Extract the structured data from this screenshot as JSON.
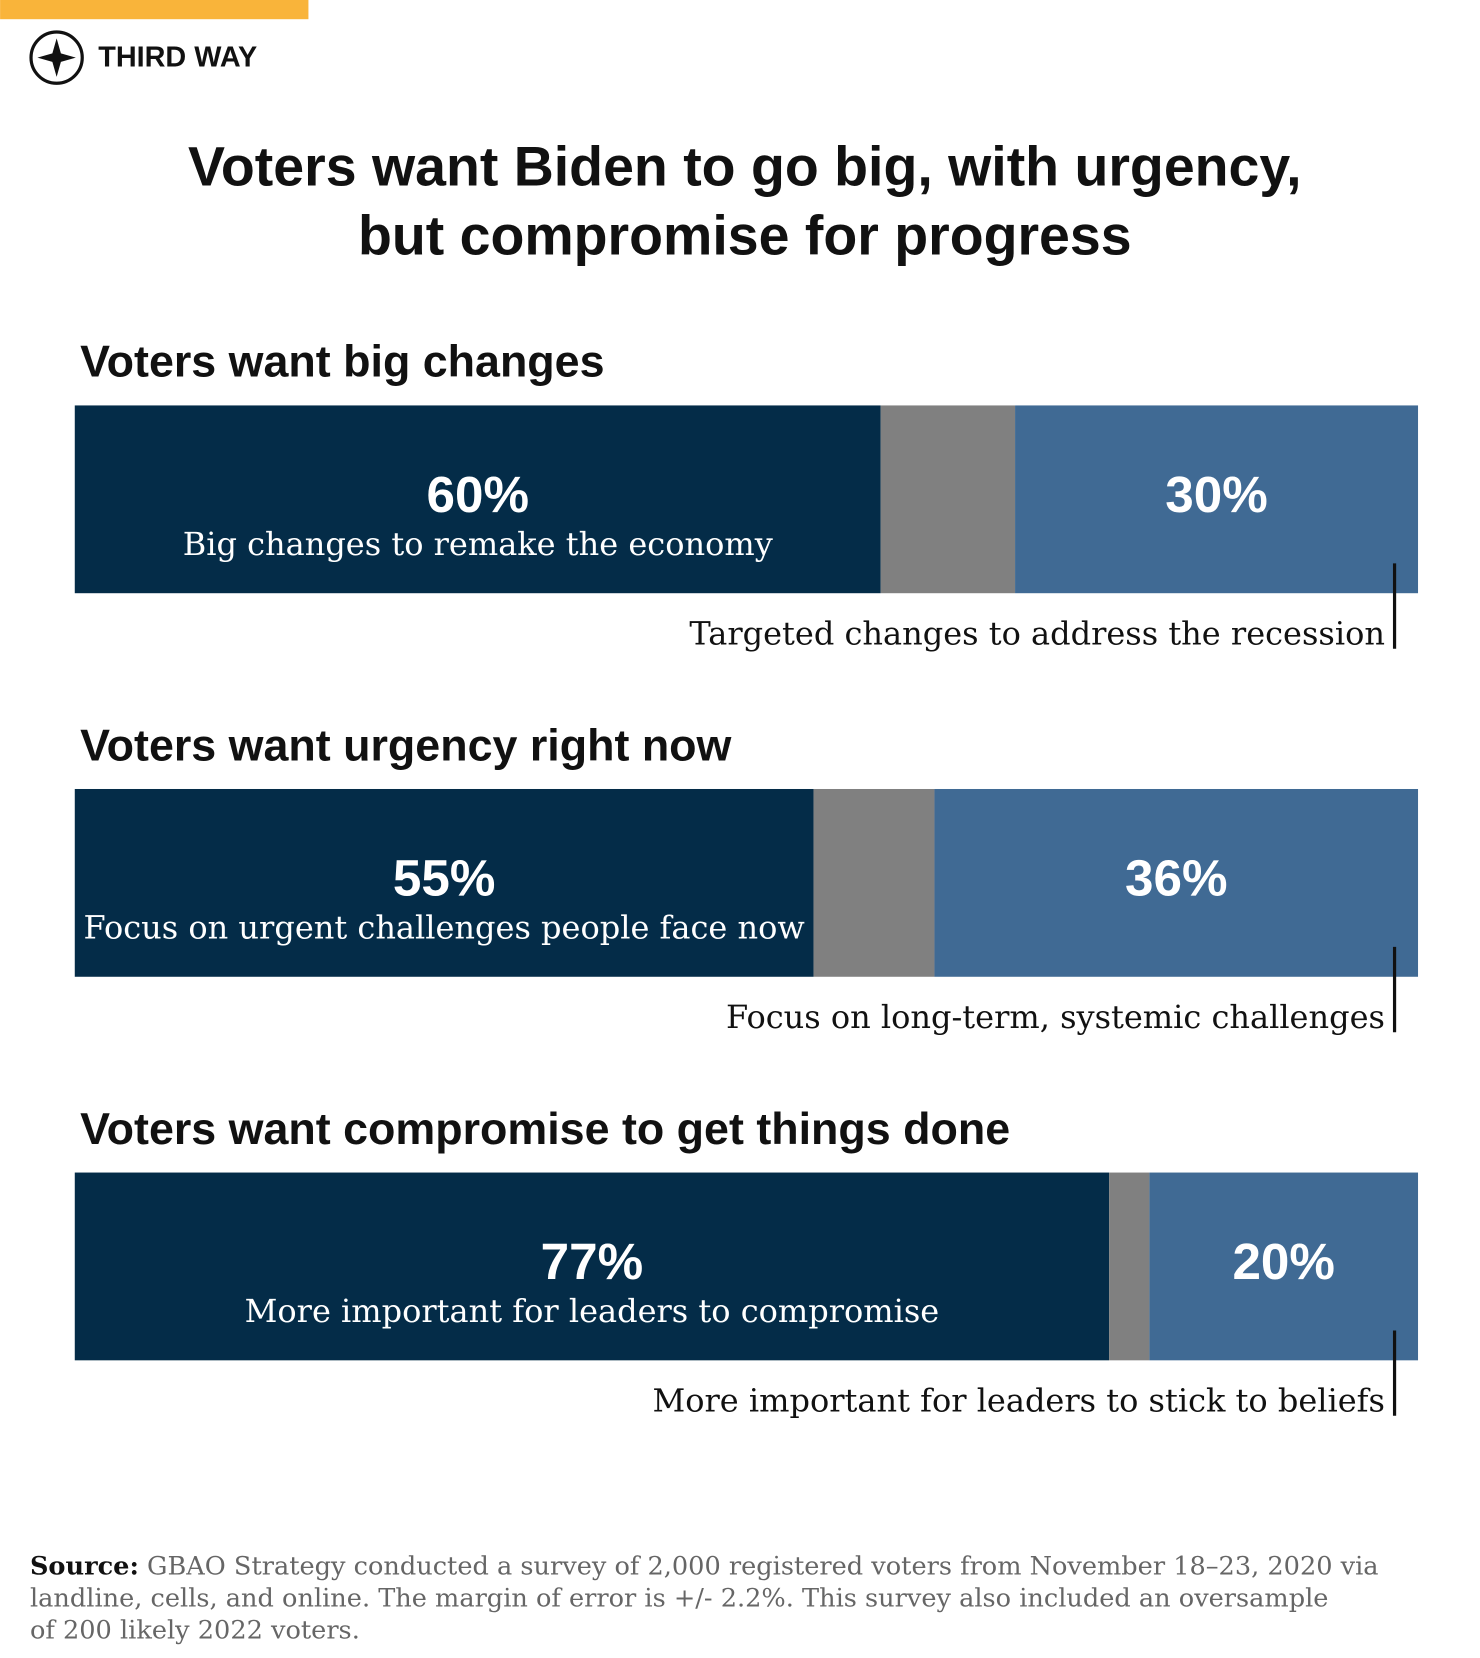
{
  "header": {
    "brand": "THIRD WAY",
    "title": [
      "Voters want Biden to go big, with urgency,",
      "but compromise for progress"
    ]
  },
  "chart_data": [
    {
      "type": "stacked-bar",
      "title": "Voters want big changes",
      "xlim": [
        0,
        100
      ],
      "series": [
        {
          "name": "Big changes to remake the economy",
          "color": "#042c48",
          "values": [
            60
          ],
          "value_labels": [
            "60%"
          ]
        },
        {
          "color": "#808080",
          "values": [
            10
          ]
        },
        {
          "name": "Targeted changes to address the recession",
          "color": "#406a94",
          "values": [
            30
          ],
          "value_labels": [
            "30%"
          ]
        }
      ]
    },
    {
      "type": "stacked-bar",
      "title": "Voters want urgency right now",
      "xlim": [
        0,
        100
      ],
      "series": [
        {
          "name": "Focus on urgent challenges people face now",
          "color": "#042c48",
          "values": [
            55
          ],
          "value_labels": [
            "55%"
          ]
        },
        {
          "color": "#808080",
          "values": [
            9
          ]
        },
        {
          "name": "Focus on long-term, systemic challenges",
          "color": "#406a94",
          "values": [
            36
          ],
          "value_labels": [
            "36%"
          ]
        }
      ]
    },
    {
      "type": "stacked-bar",
      "title": "Voters want compromise to get things done",
      "xlim": [
        0,
        100
      ],
      "series": [
        {
          "name": "More important for leaders to compromise",
          "color": "#042c48",
          "values": [
            77
          ],
          "value_labels": [
            "77%"
          ]
        },
        {
          "color": "#808080",
          "values": [
            3
          ]
        },
        {
          "name": "More important for leaders to stick to beliefs",
          "color": "#406a94",
          "values": [
            20
          ],
          "value_labels": [
            "20%"
          ]
        }
      ]
    }
  ],
  "source": {
    "label": "Source:",
    "lines": [
      "GBAO Strategy conducted a survey of 2,000 registered voters from November 18–23, 2020 via",
      "landline, cells, and online. The margin of error is +/- 2.2%. This survey also included an oversample",
      "of 200 likely 2022 voters."
    ]
  }
}
